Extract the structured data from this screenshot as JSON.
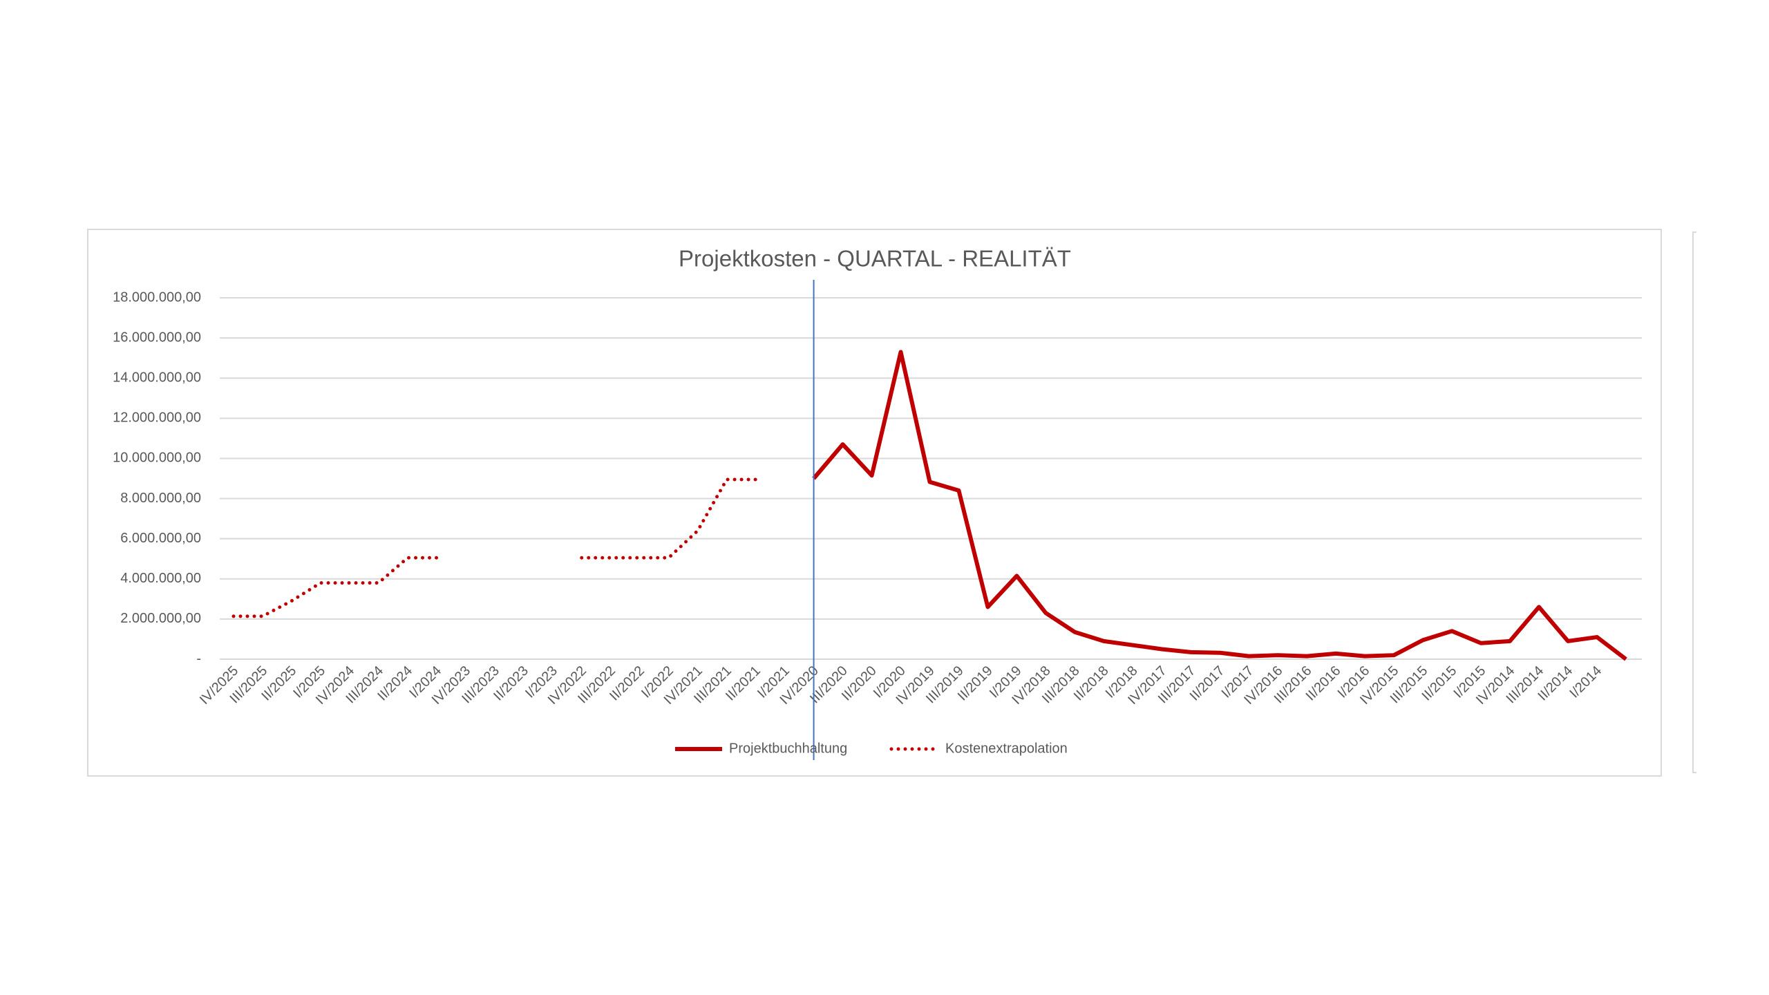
{
  "chart_data": {
    "type": "line",
    "title": "Projektkosten - QUARTAL - REALITÄT",
    "categories": [
      "IV/2025",
      "III/2025",
      "II/2025",
      "I/2025",
      "IV/2024",
      "III/2024",
      "II/2024",
      "I/2024",
      "IV/2023",
      "III/2023",
      "II/2023",
      "I/2023",
      "IV/2022",
      "III/2022",
      "II/2022",
      "I/2022",
      "IV/2021",
      "III/2021",
      "II/2021",
      "I/2021",
      "IV/2020",
      "III/2020",
      "II/2020",
      "I/2020",
      "IV/2019",
      "III/2019",
      "II/2019",
      "I/2019",
      "IV/2018",
      "III/2018",
      "II/2018",
      "I/2018",
      "IV/2017",
      "III/2017",
      "II/2017",
      "I/2017",
      "IV/2016",
      "III/2016",
      "II/2016",
      "I/2016",
      "IV/2015",
      "III/2015",
      "II/2015",
      "I/2015",
      "IV/2014",
      "III/2014",
      "II/2014",
      "I/2014",
      null
    ],
    "series": [
      {
        "name": "Projektbuchhaltung",
        "color": "#c00000",
        "style": "solid",
        "values": [
          null,
          null,
          null,
          null,
          null,
          null,
          null,
          null,
          null,
          null,
          null,
          null,
          null,
          null,
          null,
          null,
          null,
          null,
          null,
          null,
          9000000,
          10700000,
          9150000,
          15300000,
          8830000,
          8400000,
          2600000,
          4150000,
          2300000,
          1350000,
          900000,
          700000,
          500000,
          350000,
          320000,
          150000,
          200000,
          150000,
          280000,
          150000,
          200000,
          950000,
          1400000,
          800000,
          900000,
          2600000,
          900000,
          1100000,
          0
        ]
      },
      {
        "name": "Kostenextrapolation",
        "color": "#c00000",
        "style": "dotted",
        "values": [
          2140000,
          2140000,
          2900000,
          3800000,
          3800000,
          3800000,
          5050000,
          5050000,
          null,
          null,
          null,
          null,
          5050000,
          5050000,
          5050000,
          5050000,
          6400000,
          8950000,
          8950000,
          null,
          null,
          null,
          null,
          null,
          null,
          null,
          null,
          null,
          null,
          null,
          null,
          null,
          null,
          null,
          null,
          null,
          null,
          null,
          null,
          null,
          null,
          null,
          null,
          null,
          null,
          null,
          null,
          null,
          null
        ]
      }
    ],
    "ylim": [
      0,
      18000000
    ],
    "yticks": [
      {
        "value": 0,
        "label": "-"
      },
      {
        "value": 2000000,
        "label": "2.000.000,00"
      },
      {
        "value": 4000000,
        "label": "4.000.000,00"
      },
      {
        "value": 6000000,
        "label": "6.000.000,00"
      },
      {
        "value": 8000000,
        "label": "8.000.000,00"
      },
      {
        "value": 10000000,
        "label": "10.000.000,00"
      },
      {
        "value": 12000000,
        "label": "12.000.000,00"
      },
      {
        "value": 14000000,
        "label": "14.000.000,00"
      },
      {
        "value": 16000000,
        "label": "16.000.000,00"
      },
      {
        "value": 18000000,
        "label": "18.000.000,00"
      }
    ],
    "grid": true,
    "legend": "bottom"
  }
}
